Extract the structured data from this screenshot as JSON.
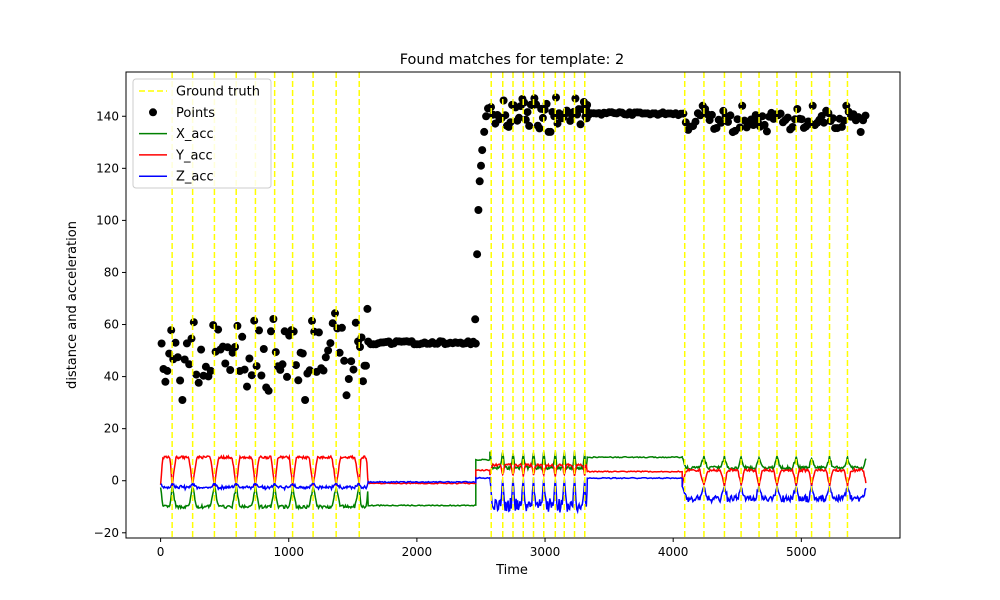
{
  "chart_data": {
    "type": "line",
    "title": "Found matches for template: 2",
    "xlabel": "Time",
    "ylabel": "distance and acceleration",
    "xlim": [
      -270,
      5770
    ],
    "ylim": [
      -22,
      157
    ],
    "xticks": [
      0,
      1000,
      2000,
      3000,
      4000,
      5000
    ],
    "yticks": [
      -20,
      0,
      20,
      40,
      60,
      80,
      100,
      120,
      140
    ],
    "grid": false,
    "legend": "top-left",
    "legend_entries": [
      {
        "label": "Ground truth",
        "color": "#ffff00",
        "style": "dashed"
      },
      {
        "label": "Points",
        "color": "#000000",
        "style": "marker"
      },
      {
        "label": "X_acc",
        "color": "#008000",
        "style": "line"
      },
      {
        "label": "Y_acc",
        "color": "#ff0000",
        "style": "line"
      },
      {
        "label": "Z_acc",
        "color": "#0000ff",
        "style": "line"
      }
    ],
    "ground_truth_x": [
      90,
      250,
      420,
      590,
      740,
      890,
      1030,
      1190,
      1370,
      1550,
      2580,
      2670,
      2750,
      2830,
      2910,
      2990,
      3080,
      3150,
      3230,
      3310,
      4090,
      4240,
      4400,
      4530,
      4670,
      4810,
      4960,
      5080,
      5220,
      5360
    ],
    "segments": [
      {
        "start": 0,
        "end": 1620,
        "cycles": [
          [
            0,
            90
          ],
          [
            90,
            250
          ],
          [
            250,
            420
          ],
          [
            420,
            590
          ],
          [
            590,
            740
          ],
          [
            740,
            890
          ],
          [
            890,
            1030
          ],
          [
            1030,
            1190
          ],
          [
            1190,
            1370
          ],
          [
            1370,
            1550
          ],
          [
            1550,
            1620
          ]
        ],
        "x_low": -10,
        "x_high": -2,
        "y_low": -2,
        "y_high": 9,
        "z_low": -3,
        "z_high": -1,
        "points_low": 31,
        "points_high": 66
      },
      {
        "start": 1620,
        "end": 2460,
        "flat": true,
        "x_level": -9.5,
        "y_level": -1,
        "z_level": -0.5,
        "points_level": 53
      },
      {
        "start": 2460,
        "end": 2570,
        "ramp": true,
        "x_level": 8,
        "y_level": 4,
        "z_level": 1,
        "points_from": 53,
        "points_to": 143
      },
      {
        "start": 2570,
        "end": 3330,
        "cycles": [
          [
            2570,
            2670
          ],
          [
            2670,
            2750
          ],
          [
            2750,
            2830
          ],
          [
            2830,
            2910
          ],
          [
            2910,
            2990
          ],
          [
            2990,
            3080
          ],
          [
            3080,
            3150
          ],
          [
            3150,
            3230
          ],
          [
            3230,
            3310
          ],
          [
            3310,
            3330
          ]
        ],
        "x_low": 5,
        "x_high": 11,
        "y_low": 2,
        "y_high": 6,
        "z_low": -12,
        "z_high": 1,
        "points_low": 134,
        "points_high": 148
      },
      {
        "start": 3330,
        "end": 4070,
        "flat": true,
        "x_level": 9,
        "y_level": 3.5,
        "z_level": 1,
        "points_level": 141
      },
      {
        "start": 4070,
        "end": 5510,
        "cycles": [
          [
            4070,
            4240
          ],
          [
            4240,
            4400
          ],
          [
            4400,
            4530
          ],
          [
            4530,
            4670
          ],
          [
            4670,
            4810
          ],
          [
            4810,
            4960
          ],
          [
            4960,
            5080
          ],
          [
            5080,
            5220
          ],
          [
            5220,
            5360
          ],
          [
            5360,
            5510
          ]
        ],
        "x_low": 5,
        "x_high": 9,
        "y_low": -2,
        "y_high": 4,
        "z_low": -8,
        "z_high": -2,
        "points_low": 133,
        "points_high": 144
      }
    ]
  }
}
